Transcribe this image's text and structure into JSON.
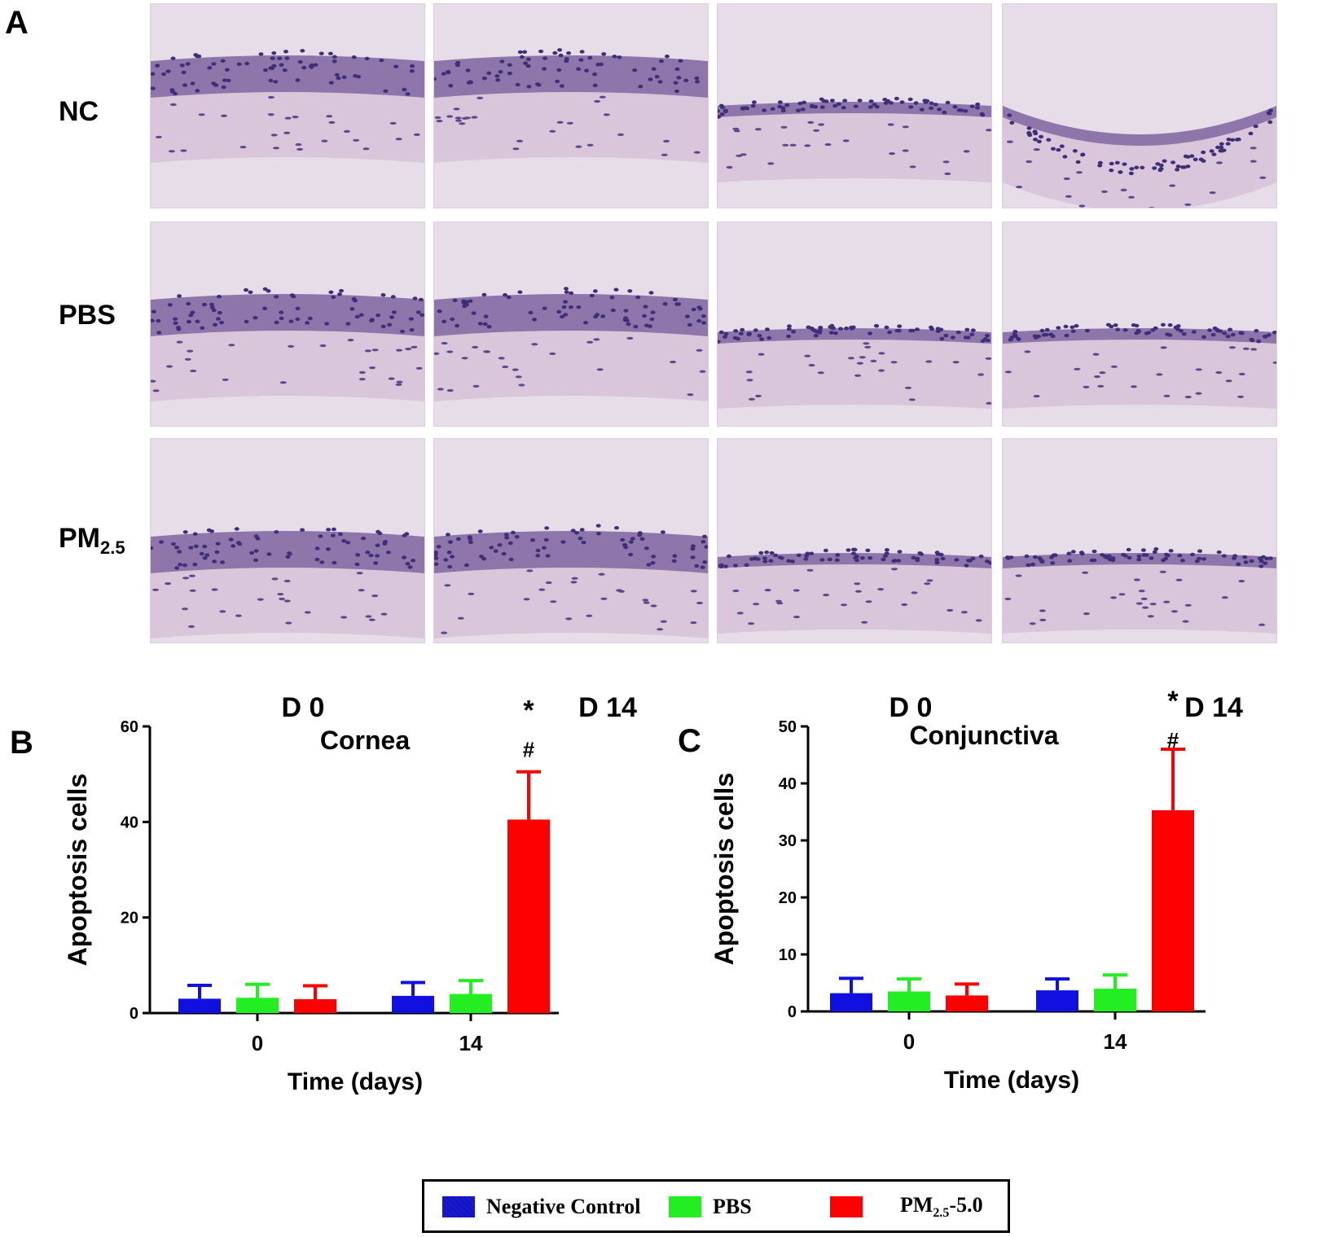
{
  "panel_a": {
    "letter": "A",
    "rows": [
      "NC",
      "PBS",
      "PM"
    ],
    "row_sub": "2.5",
    "cols": [
      "D 0",
      "D 14",
      "D 0",
      "D 14"
    ]
  },
  "colors": {
    "negative_control": "#1010e0",
    "pbs": "#22ee22",
    "pm": "#ff0000"
  },
  "chart_data": [
    {
      "type": "bar",
      "panel": "B",
      "title": "Cornea",
      "xlabel": "Time (days)",
      "ylabel": "Apoptosis cells",
      "categories": [
        "0",
        "14"
      ],
      "ylim": [
        0,
        60
      ],
      "yticks": [
        0,
        20,
        40,
        60
      ],
      "series": [
        {
          "name": "Negative Control",
          "values": [
            3,
            3.6
          ],
          "errors": [
            2.8,
            2.8
          ]
        },
        {
          "name": "PBS",
          "values": [
            3.2,
            4
          ],
          "errors": [
            2.8,
            2.8
          ]
        },
        {
          "name": "PM2.5-5.0",
          "values": [
            2.9,
            40.5
          ],
          "errors": [
            2.8,
            10
          ]
        }
      ],
      "annotations": [
        "*",
        "#"
      ]
    },
    {
      "type": "bar",
      "panel": "C",
      "title": "Conjunctiva",
      "xlabel": "Time (days)",
      "ylabel": "Apoptosis cells",
      "categories": [
        "0",
        "14"
      ],
      "ylim": [
        0,
        50
      ],
      "yticks": [
        0,
        10,
        20,
        30,
        40,
        50
      ],
      "series": [
        {
          "name": "Negative Control",
          "values": [
            3.2,
            3.7
          ],
          "errors": [
            2.6,
            2
          ]
        },
        {
          "name": "PBS",
          "values": [
            3.5,
            4
          ],
          "errors": [
            2.2,
            2.4
          ]
        },
        {
          "name": "PM2.5-5.0",
          "values": [
            2.8,
            35.3
          ],
          "errors": [
            2,
            10.7
          ]
        }
      ],
      "annotations": [
        "*",
        "#"
      ]
    }
  ],
  "legend": {
    "items": [
      {
        "label": "Negative Control"
      },
      {
        "label": "PBS"
      },
      {
        "label_main": "PM",
        "label_sub": "2.5",
        "label_tail": "-5.0"
      }
    ]
  }
}
